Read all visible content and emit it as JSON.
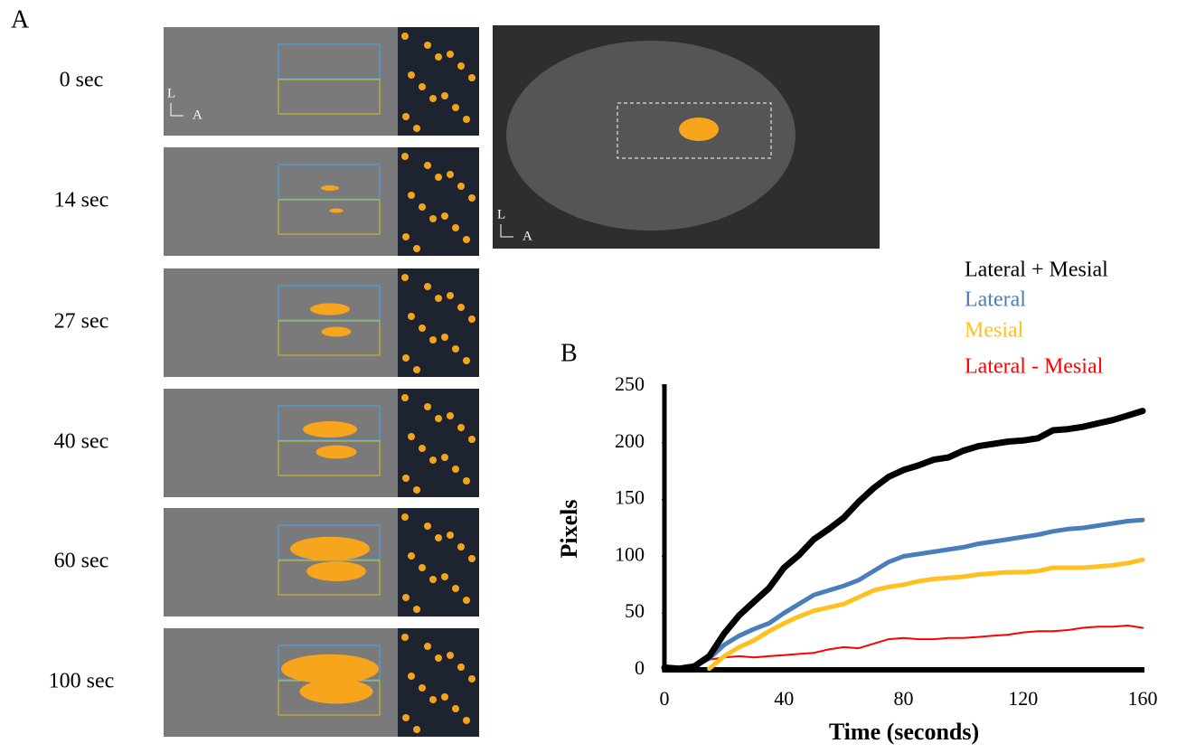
{
  "panel_a": {
    "label": "A",
    "times": [
      "0 sec",
      "14 sec",
      "27 sec",
      "40 sec",
      "60 sec",
      "100 sec"
    ],
    "orientation": {
      "up": "L",
      "right": "A"
    }
  },
  "chart_data": {
    "type": "line",
    "label": "B",
    "xlabel": "Time (seconds)",
    "ylabel": "Pixels",
    "x": [
      0,
      5,
      10,
      15,
      20,
      25,
      30,
      35,
      40,
      45,
      50,
      55,
      60,
      65,
      70,
      75,
      80,
      85,
      90,
      95,
      100,
      105,
      110,
      115,
      120,
      125,
      130,
      135,
      140,
      145,
      150,
      155,
      160
    ],
    "series": [
      {
        "name": "Lateral + Mesial",
        "color": "#000000",
        "line_width": 7,
        "values": [
          2,
          1,
          3,
          12,
          32,
          48,
          60,
          72,
          90,
          101,
          115,
          124,
          134,
          148,
          160,
          170,
          176,
          180,
          185,
          187,
          193,
          197,
          199,
          201,
          202,
          204,
          211,
          212,
          214,
          217,
          220,
          224,
          228
        ]
      },
      {
        "name": "Lateral",
        "color": "#4a7ebb",
        "line_width": 5,
        "values": [
          2,
          1,
          3,
          10,
          22,
          30,
          36,
          41,
          50,
          58,
          66,
          70,
          74,
          79,
          87,
          95,
          100,
          102,
          104,
          106,
          108,
          111,
          113,
          115,
          117,
          119,
          122,
          124,
          125,
          127,
          129,
          131,
          132
        ]
      },
      {
        "name": "Mesial",
        "color": "#ffc020",
        "line_width": 5,
        "values": [
          null,
          null,
          null,
          1,
          12,
          20,
          26,
          34,
          41,
          47,
          52,
          55,
          58,
          64,
          70,
          73,
          75,
          78,
          80,
          81,
          82,
          84,
          85,
          86,
          86,
          87,
          90,
          90,
          90,
          91,
          92,
          94,
          97
        ]
      },
      {
        "name": "Lateral - Mesial",
        "color": "#ff0000",
        "line_width": 2,
        "values": [
          1,
          1,
          5,
          9,
          11,
          12,
          11,
          12,
          13,
          14,
          15,
          18,
          20,
          19,
          23,
          27,
          28,
          27,
          27,
          28,
          28,
          29,
          30,
          31,
          33,
          34,
          34,
          35,
          37,
          38,
          38,
          39,
          37
        ]
      }
    ],
    "xlim": [
      0,
      160
    ],
    "xticks": [
      0,
      40,
      80,
      120,
      160
    ],
    "ylim": [
      0,
      250
    ],
    "yticks": [
      0,
      50,
      100,
      150,
      200,
      250
    ],
    "grid": false,
    "legend": "top-right"
  }
}
